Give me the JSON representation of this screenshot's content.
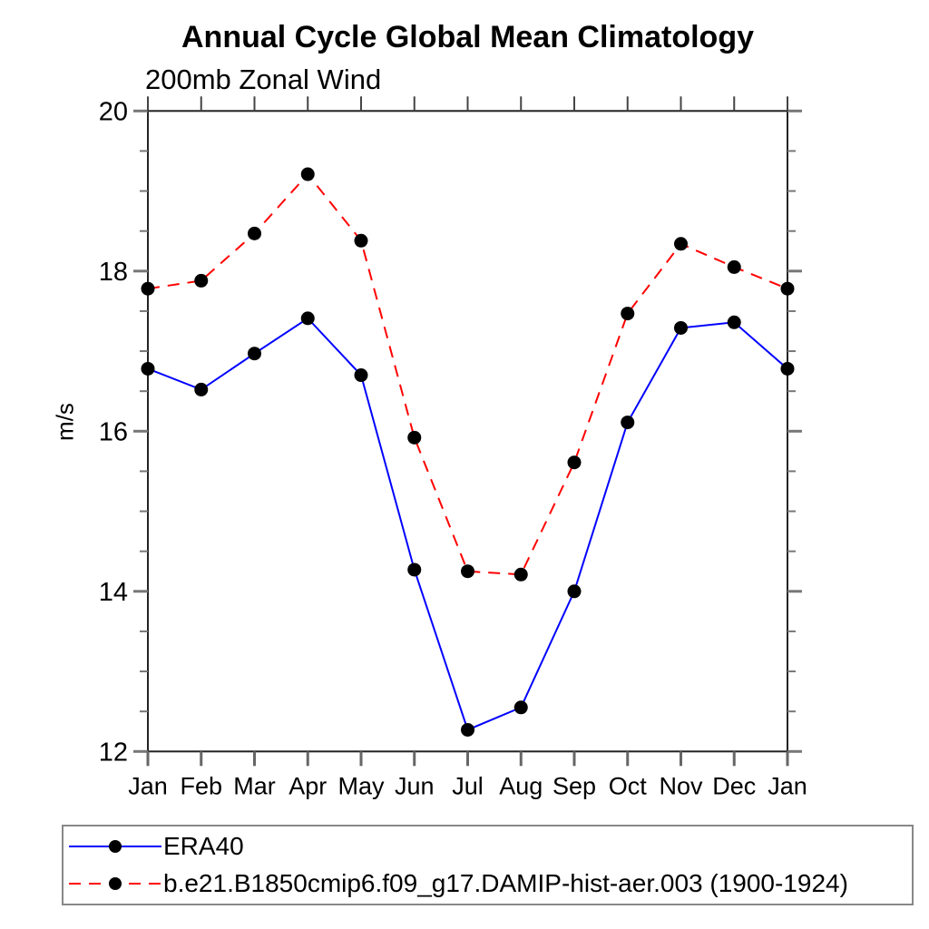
{
  "page": {
    "background": "#ffffff"
  },
  "chart_data": {
    "type": "line",
    "title": "Annual Cycle Global Mean Climatology",
    "subtitle": "200mb Zonal Wind",
    "ylabel": "m/s",
    "xlabel": "",
    "categories": [
      "Jan",
      "Feb",
      "Mar",
      "Apr",
      "May",
      "Jun",
      "Jul",
      "Aug",
      "Sep",
      "Oct",
      "Nov",
      "Dec",
      "Jan"
    ],
    "ylim": [
      12,
      20
    ],
    "yticks_major": [
      12,
      14,
      16,
      18,
      20
    ],
    "ytick_minor_step": 0.5,
    "grid": false,
    "legend_position": "bottom-left-box",
    "axis_color": "#222222",
    "tick_color": "#777777",
    "series": [
      {
        "name": "ERA40",
        "color": "#0000ff",
        "line_style": "solid",
        "marker": "filled-circle",
        "marker_color": "#000000",
        "values": [
          16.78,
          16.52,
          16.97,
          17.41,
          16.7,
          14.27,
          12.27,
          12.55,
          14.0,
          16.11,
          17.29,
          17.36,
          16.78
        ]
      },
      {
        "name": "b.e21.B1850cmip6.f09_g17.DAMIP-hist-aer.003 (1900-1924)",
        "color": "#ff0000",
        "line_style": "dashed",
        "marker": "filled-circle",
        "marker_color": "#000000",
        "values": [
          17.78,
          17.88,
          18.47,
          19.21,
          18.38,
          15.92,
          14.25,
          14.21,
          15.61,
          17.47,
          18.34,
          18.05,
          17.78
        ]
      }
    ]
  }
}
